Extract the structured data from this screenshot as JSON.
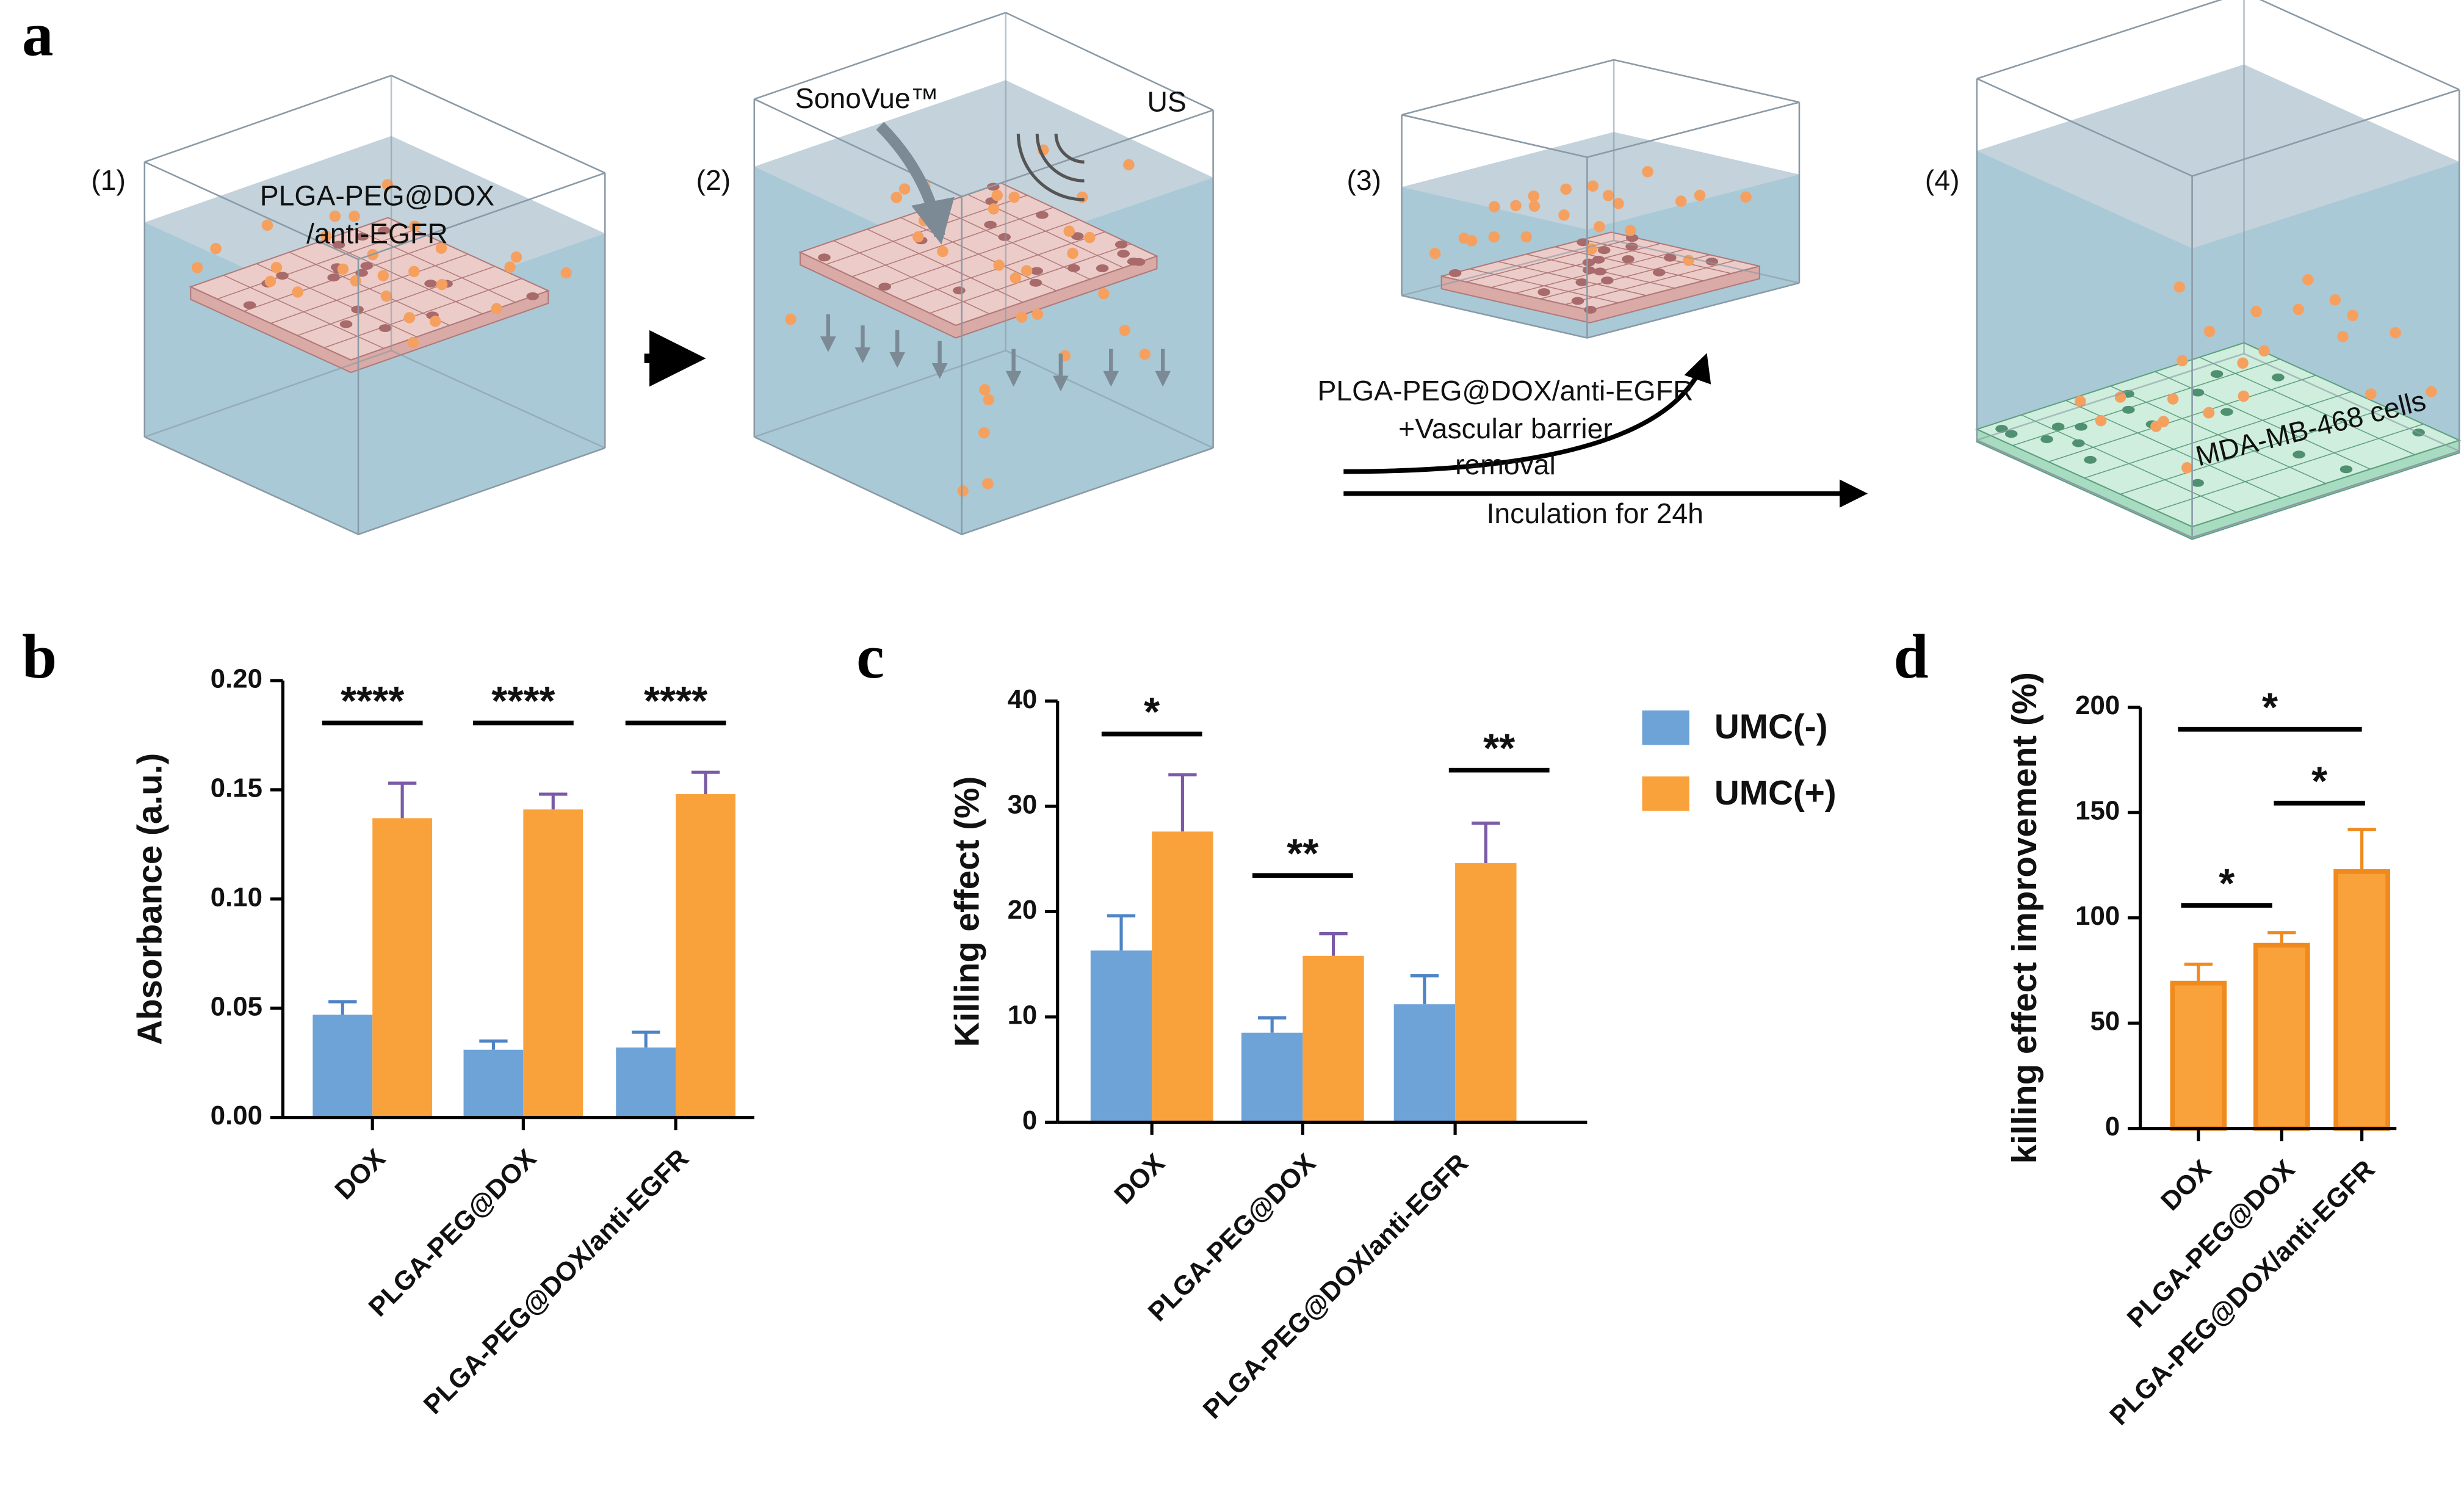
{
  "panel_labels": [
    "a",
    "b",
    "c",
    "d"
  ],
  "diagram": {
    "steps": [
      "(1)",
      "(2)",
      "(3)",
      "(4)"
    ],
    "drug_label": [
      "PLGA-PEG@DOX",
      "/anti-EGFR"
    ],
    "microbubble": "SonoVue™",
    "ultrasound": "US",
    "transfer_label": [
      "PLGA-PEG@DOX/anti-EGFR",
      "+Vascular barrier",
      "removal"
    ],
    "incubation": "Inculation for 24h",
    "cells": "MDA-MB-468 cells"
  },
  "chart_data": [
    {
      "type": "bar",
      "ylabel": "Absorbance (a.u.)",
      "categories": [
        "DOX",
        "PLGA-PEG@DOX",
        "PLGA-PEG@DOX/anti-EGFR"
      ],
      "ylim": [
        0,
        0.2
      ],
      "yticks": [
        {
          "value": 0,
          "label": "0.00"
        },
        {
          "value": 0.05,
          "label": "0.05"
        },
        {
          "value": 0.1,
          "label": "0.10"
        },
        {
          "value": 0.15,
          "label": "0.15"
        },
        {
          "value": 0.2,
          "label": "0.20"
        }
      ],
      "series": [
        {
          "color": "#6ea3d8",
          "error_color": "#4e84c4",
          "values": [
            0.047,
            0.031,
            0.032
          ],
          "errors": [
            0.006,
            0.004,
            0.007
          ]
        },
        {
          "color": "#f9a23c",
          "error_color": "#7b5aa6",
          "values": [
            0.137,
            0.141,
            0.148
          ],
          "errors": [
            0.016,
            0.007,
            0.01
          ]
        }
      ],
      "significance": [
        "****",
        "****",
        "****"
      ]
    },
    {
      "type": "bar",
      "ylabel": "Killing effect (%)",
      "categories": [
        "DOX",
        "PLGA-PEG@DOX",
        "PLGA-PEG@DOX/anti-EGFR"
      ],
      "ylim": [
        0,
        40
      ],
      "yticks": [
        0,
        10,
        20,
        30,
        40
      ],
      "series": [
        {
          "name": "UMC(-)",
          "color": "#6ea3d8",
          "error_color": "#4e84c4",
          "values": [
            16.3,
            8.5,
            11.2
          ],
          "errors": [
            3.3,
            1.4,
            2.7
          ]
        },
        {
          "name": "UMC(+)",
          "color": "#f9a23c",
          "error_color": "#7b5aa6",
          "values": [
            27.6,
            15.8,
            24.6
          ],
          "errors": [
            5.4,
            2.1,
            3.8
          ]
        }
      ],
      "legend": "right",
      "significance": [
        "*",
        "**",
        "**"
      ]
    },
    {
      "type": "bar",
      "ylabel": "killing effect improvement (%)",
      "categories": [
        "DOX",
        "PLGA-PEG@DOX",
        "PLGA-PEG@DOX/anti-EGFR"
      ],
      "ylim": [
        0,
        200
      ],
      "yticks": [
        0,
        50,
        100,
        150,
        200
      ],
      "series": [
        {
          "color": "#f9a23c",
          "edge_color": "#f08a1c",
          "error_color": "#f08a1c",
          "values": [
            69,
            87,
            122
          ],
          "errors": [
            9,
            6,
            20
          ]
        }
      ],
      "significance": [
        "*",
        "*",
        "*"
      ]
    }
  ]
}
